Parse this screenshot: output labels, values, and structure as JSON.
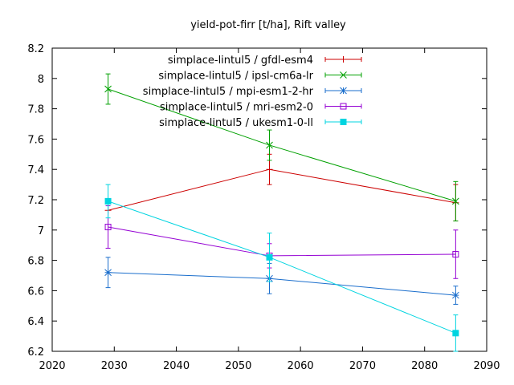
{
  "chart_data": {
    "type": "line",
    "title": "yield-pot-firr [t/ha], Rift valley",
    "xlabel": "",
    "ylabel": "",
    "xlim": [
      2020,
      2090
    ],
    "ylim": [
      6.2,
      8.2
    ],
    "xticks": [
      2020,
      2030,
      2040,
      2050,
      2060,
      2070,
      2080,
      2090
    ],
    "yticks": [
      6.2,
      6.4,
      6.6,
      6.8,
      7.0,
      7.2,
      7.4,
      7.6,
      7.8,
      8.0,
      8.2
    ],
    "xtick_labels": [
      "2020",
      "2030",
      "2040",
      "2050",
      "2060",
      "2070",
      "2080",
      "2090"
    ],
    "ytick_labels": [
      "6.2",
      "6.4",
      "6.6",
      "6.8",
      "7",
      "7.2",
      "7.4",
      "7.6",
      "7.8",
      "8",
      "8.2"
    ],
    "grid": false,
    "legend_position": "top-right",
    "error_bars": true,
    "series": [
      {
        "name": "simplace-lintul5 / gfdl-esm4",
        "color": "#cc0000",
        "marker": "plus",
        "points": [
          {
            "x": 2029,
            "y": 7.13,
            "ylow": 7.13,
            "yhigh": 7.13
          },
          {
            "x": 2055,
            "y": 7.4,
            "ylow": 7.3,
            "yhigh": 7.5
          },
          {
            "x": 2085,
            "y": 7.18,
            "ylow": 7.06,
            "yhigh": 7.3
          }
        ]
      },
      {
        "name": "simplace-lintul5 / ipsl-cm6a-lr",
        "color": "#00a000",
        "marker": "x",
        "points": [
          {
            "x": 2029,
            "y": 7.93,
            "ylow": 7.83,
            "yhigh": 8.03
          },
          {
            "x": 2055,
            "y": 7.56,
            "ylow": 7.46,
            "yhigh": 7.66
          },
          {
            "x": 2085,
            "y": 7.19,
            "ylow": 7.06,
            "yhigh": 7.32
          }
        ]
      },
      {
        "name": "simplace-lintul5 / mpi-esm1-2-hr",
        "color": "#1a6ecc",
        "marker": "star",
        "points": [
          {
            "x": 2029,
            "y": 6.72,
            "ylow": 6.62,
            "yhigh": 6.82
          },
          {
            "x": 2055,
            "y": 6.68,
            "ylow": 6.58,
            "yhigh": 6.78
          },
          {
            "x": 2085,
            "y": 6.57,
            "ylow": 6.51,
            "yhigh": 6.63
          }
        ]
      },
      {
        "name": "simplace-lintul5 / mri-esm2-0",
        "color": "#9400d3",
        "marker": "square-open",
        "points": [
          {
            "x": 2029,
            "y": 7.02,
            "ylow": 6.88,
            "yhigh": 7.16
          },
          {
            "x": 2055,
            "y": 6.83,
            "ylow": 6.75,
            "yhigh": 6.91
          },
          {
            "x": 2085,
            "y": 6.84,
            "ylow": 6.68,
            "yhigh": 7.0
          }
        ]
      },
      {
        "name": "simplace-lintul5 / ukesm1-0-ll",
        "color": "#00d4e0",
        "marker": "square-filled",
        "points": [
          {
            "x": 2029,
            "y": 7.19,
            "ylow": 7.08,
            "yhigh": 7.3
          },
          {
            "x": 2055,
            "y": 6.82,
            "ylow": 6.66,
            "yhigh": 6.98
          },
          {
            "x": 2085,
            "y": 6.32,
            "ylow": 6.2,
            "yhigh": 6.44
          }
        ]
      }
    ]
  }
}
